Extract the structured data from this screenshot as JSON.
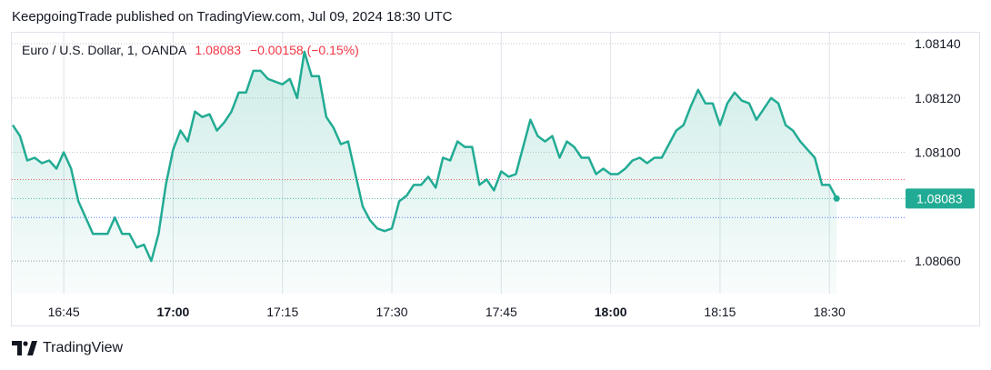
{
  "header": {
    "published": "KeepgoingTrade published on TradingView.com, Jul 09, 2024 18:30 UTC"
  },
  "legend": {
    "symbol": "Euro / U.S. Dollar, 1, OANDA",
    "last": "1.08083",
    "change": "−0.00158 (−0.15%)"
  },
  "footer": {
    "brand": "TradingView"
  },
  "colors": {
    "line": "#22ab94",
    "negative": "#f23645",
    "grid": "#e0e3eb"
  },
  "chart_data": {
    "type": "area",
    "x_start": "16:38",
    "x_step_minutes": 1,
    "x_ticks": [
      {
        "label": "16:45",
        "minute": 7,
        "bold": false
      },
      {
        "label": "17:00",
        "minute": 22,
        "bold": true
      },
      {
        "label": "17:15",
        "minute": 37,
        "bold": false
      },
      {
        "label": "17:30",
        "minute": 52,
        "bold": false
      },
      {
        "label": "17:45",
        "minute": 67,
        "bold": false
      },
      {
        "label": "18:00",
        "minute": 82,
        "bold": true
      },
      {
        "label": "18:15",
        "minute": 97,
        "bold": false
      },
      {
        "label": "18:30",
        "minute": 112,
        "bold": false
      }
    ],
    "y_ticks": [
      "1.08140",
      "1.08120",
      "1.08100",
      "1.08060"
    ],
    "ylim": [
      1.08048,
      1.08144
    ],
    "last_price_label": "1.08083",
    "reference_lines": [
      {
        "value": 1.0809,
        "color": "#f23645"
      },
      {
        "value": 1.08076,
        "color": "#2962ff"
      },
      {
        "value": 1.0806,
        "color": "#9598a1"
      }
    ],
    "values": [
      1.0811,
      1.08106,
      1.08097,
      1.08098,
      1.08096,
      1.08097,
      1.08094,
      1.081,
      1.08094,
      1.08082,
      1.08076,
      1.0807,
      1.0807,
      1.0807,
      1.08076,
      1.0807,
      1.0807,
      1.08065,
      1.08066,
      1.0806,
      1.0807,
      1.08088,
      1.08101,
      1.08108,
      1.08104,
      1.08115,
      1.08113,
      1.08114,
      1.08108,
      1.08111,
      1.08115,
      1.08122,
      1.08122,
      1.0813,
      1.0813,
      1.08127,
      1.08126,
      1.08125,
      1.08127,
      1.0812,
      1.08137,
      1.08128,
      1.08128,
      1.08113,
      1.08109,
      1.08103,
      1.08104,
      1.08092,
      1.0808,
      1.08075,
      1.08072,
      1.08071,
      1.08072,
      1.08082,
      1.08084,
      1.08088,
      1.08088,
      1.08091,
      1.08087,
      1.08098,
      1.08097,
      1.08104,
      1.08102,
      1.08102,
      1.08088,
      1.0809,
      1.08086,
      1.08093,
      1.08091,
      1.08092,
      1.08102,
      1.08112,
      1.08106,
      1.08104,
      1.08106,
      1.08098,
      1.08104,
      1.08102,
      1.08098,
      1.08098,
      1.08092,
      1.08094,
      1.08092,
      1.08092,
      1.08094,
      1.08097,
      1.08098,
      1.08096,
      1.08098,
      1.08098,
      1.08103,
      1.08108,
      1.0811,
      1.08117,
      1.08123,
      1.08118,
      1.08118,
      1.0811,
      1.08118,
      1.08122,
      1.08119,
      1.08118,
      1.08112,
      1.08116,
      1.0812,
      1.08118,
      1.0811,
      1.08108,
      1.08104,
      1.08101,
      1.08098,
      1.08088,
      1.08088,
      1.08083
    ]
  }
}
